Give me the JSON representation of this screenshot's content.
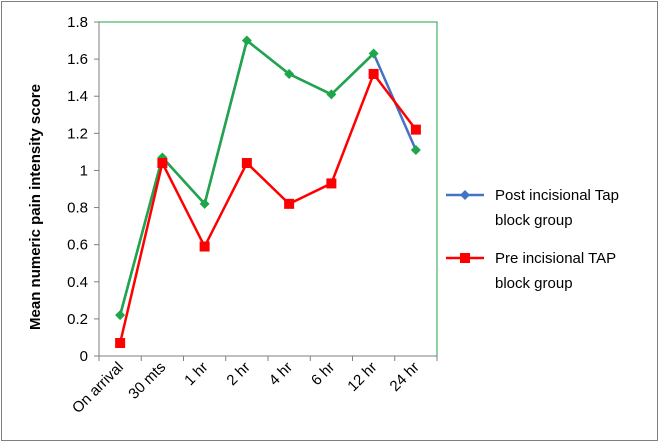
{
  "chart_data": {
    "type": "line",
    "categories": [
      "On arrival",
      "30 mts",
      "1 hr",
      "2 hr",
      "4 hr",
      "6 hr",
      "12 hr",
      "24 hr"
    ],
    "ylabel": "Mean numeric pain intensity score",
    "xlabel": "",
    "title": "",
    "ylim": [
      0,
      1.8
    ],
    "yticks": [
      "0",
      "0.2",
      "0.4",
      "0.6",
      "0.8",
      "1",
      "1.2",
      "1.4",
      "1.6",
      "1.8"
    ],
    "legend_position": "right",
    "grid": false,
    "series": [
      {
        "name": "Post incisional Tap block group",
        "color": "#4472c4",
        "marker": "diamond",
        "values": [
          0.22,
          1.07,
          0.82,
          1.7,
          1.52,
          1.41,
          1.63,
          1.11
        ],
        "overlay_color": "#1fa54a",
        "overlay_until_index": 6
      },
      {
        "name": "Pre incisional TAP block group",
        "color": "#ff0000",
        "marker": "square",
        "values": [
          0.07,
          1.04,
          0.59,
          1.04,
          0.82,
          0.93,
          1.52,
          1.22
        ]
      }
    ],
    "legend": {
      "entries": [
        {
          "lines": [
            "Post incisional Tap",
            "block group"
          ]
        },
        {
          "lines": [
            "Pre incisional TAP",
            "block group"
          ]
        }
      ]
    }
  }
}
